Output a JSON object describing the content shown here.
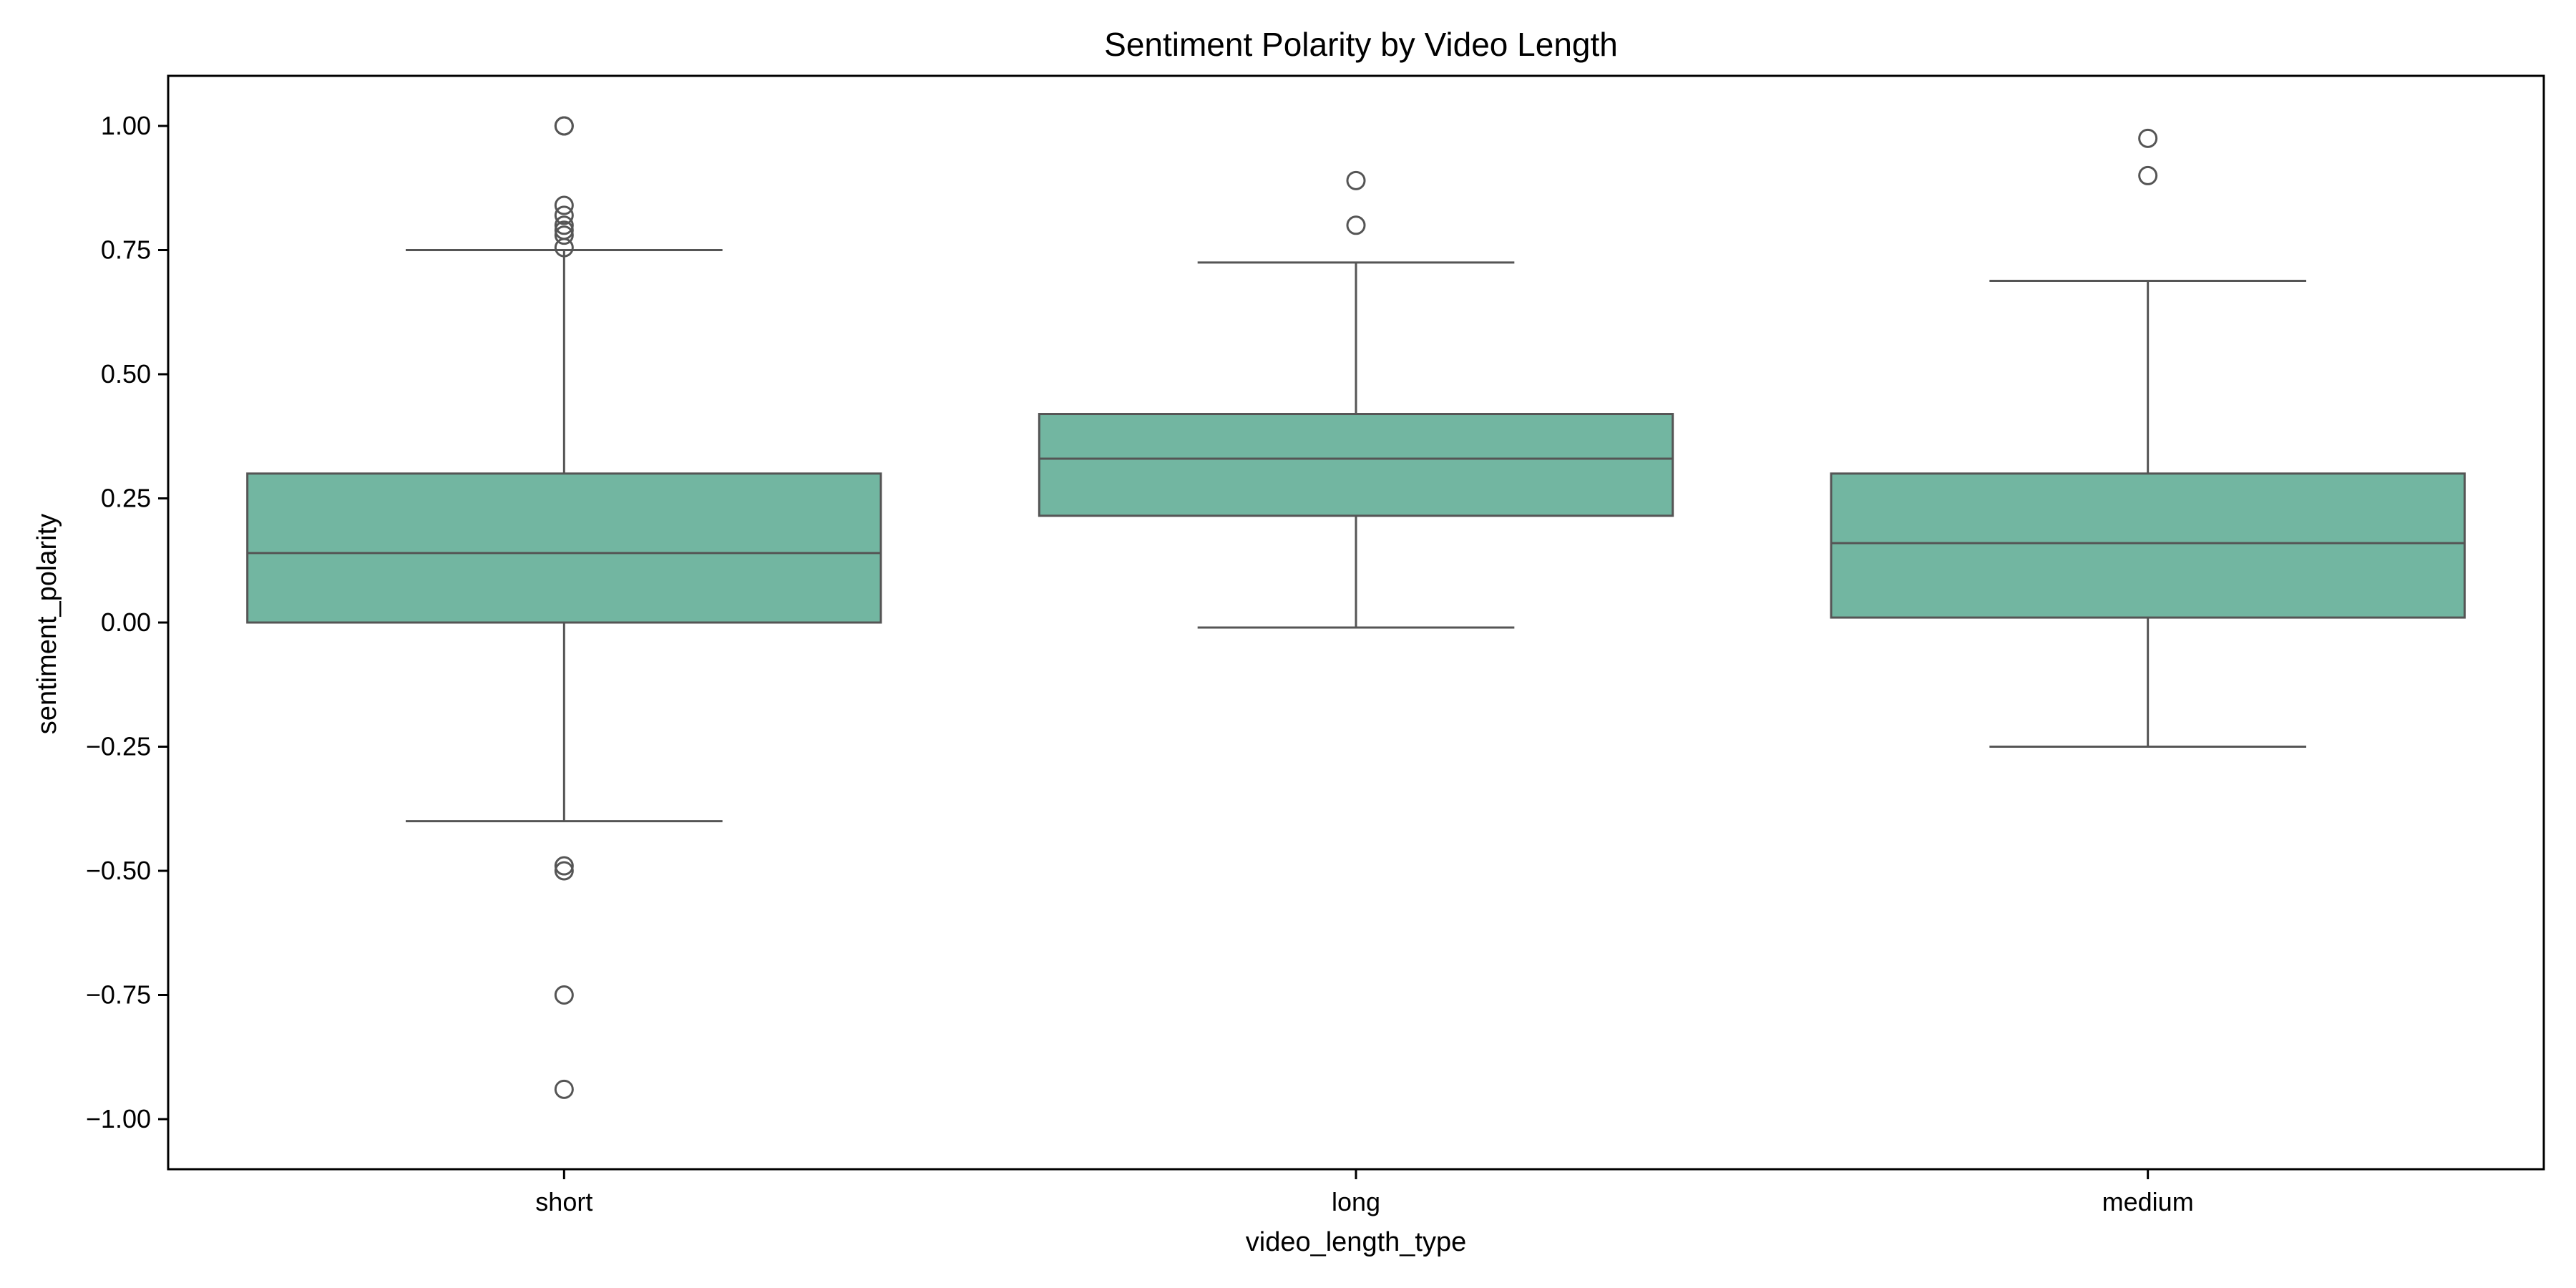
{
  "chart_data": {
    "type": "box",
    "title": "Sentiment Polarity by Video Length",
    "xlabel": "video_length_type",
    "ylabel": "sentiment_polarity",
    "categories": [
      "short",
      "long",
      "medium"
    ],
    "ylim": [
      -1.06,
      1.1
    ],
    "yticks": [
      1.0,
      0.75,
      0.5,
      0.25,
      0.0,
      -0.25,
      -0.5,
      -0.75,
      -1.0
    ],
    "ytick_labels": [
      "1.00",
      "0.75",
      "0.50",
      "0.25",
      "0.00",
      "−0.25",
      "−0.50",
      "−0.75",
      "−1.00"
    ],
    "grid": false,
    "box_color": "#72b6a1",
    "line_color": "#555555",
    "boxes": [
      {
        "category": "short",
        "whisker_low": -0.4,
        "q1": 0.0,
        "median": 0.14,
        "q3": 0.3,
        "whisker_high": 0.75,
        "outliers": [
          1.0,
          1.0,
          0.84,
          0.82,
          0.8,
          0.79,
          0.78,
          0.755,
          -0.49,
          -0.5,
          -0.75,
          -0.94
        ]
      },
      {
        "category": "long",
        "whisker_low": -0.01,
        "q1": 0.215,
        "median": 0.33,
        "q3": 0.42,
        "whisker_high": 0.725,
        "outliers": [
          0.89,
          0.8
        ]
      },
      {
        "category": "medium",
        "whisker_low": -0.25,
        "q1": 0.01,
        "median": 0.16,
        "q3": 0.3,
        "whisker_high": 0.688,
        "outliers": [
          0.975,
          0.9
        ]
      }
    ]
  }
}
